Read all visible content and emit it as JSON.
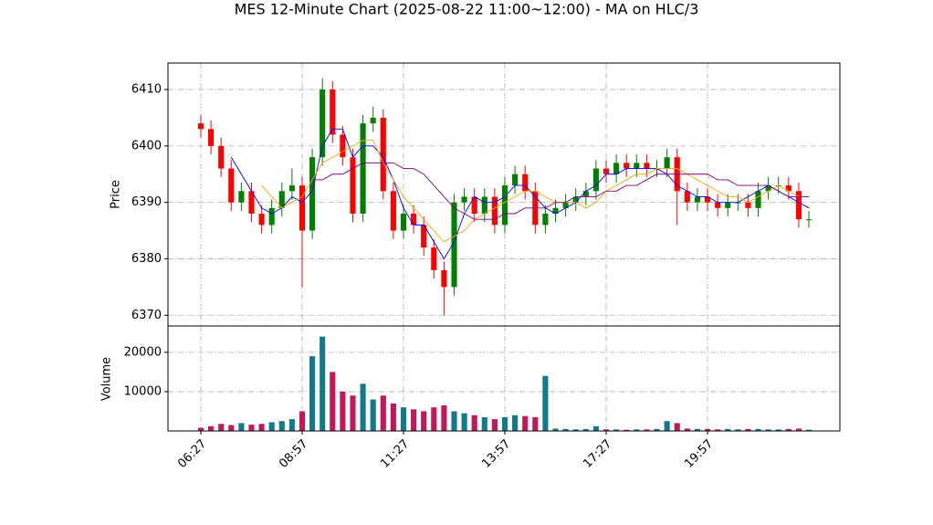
{
  "chart_data": {
    "type": "candlestick",
    "title": "MES 12-Minute Chart (2025-08-22 11:00~12:00) - MA on HLC/3",
    "ylabel": "Price",
    "volume_label": "Volume",
    "xlim": [
      -3.24,
      63.06
    ],
    "xticks": [
      {
        "value": 0,
        "label": "06:27"
      },
      {
        "value": 10,
        "label": "08:57"
      },
      {
        "value": 20,
        "label": "11:27"
      },
      {
        "value": 30,
        "label": "13:57"
      },
      {
        "value": 40,
        "label": "17:27"
      },
      {
        "value": 50,
        "label": "19:57"
      }
    ],
    "ylim": [
      6368.1,
      6414.7
    ],
    "yticks": [
      6370,
      6380,
      6390,
      6400,
      6410
    ],
    "volume_ylim": [
      0,
      26700
    ],
    "volume_yticks": [
      10000,
      20000
    ],
    "grid": true,
    "up_color": "green",
    "down_color": "red",
    "volume_up_color": "#117a8b",
    "volume_down_color": "#c2185b",
    "open": [
      6404,
      6403,
      6400,
      6396,
      6390,
      6392,
      6388,
      6386,
      6389,
      6392,
      6393,
      6385,
      6398,
      6410,
      6402,
      6398,
      6388,
      6404,
      6405,
      6392,
      6385,
      6388,
      6386,
      6382,
      6378,
      6375,
      6390,
      6391,
      6388,
      6391,
      6386,
      6393,
      6395,
      6392,
      6386,
      6388,
      6389,
      6390,
      6391,
      6392,
      6396,
      6395,
      6397,
      6396,
      6397,
      6396,
      6396,
      6398,
      6392,
      6390,
      6391,
      6390,
      6389,
      6390,
      6390,
      6389,
      6392,
      6393,
      6393,
      6392,
      6387
    ],
    "high": [
      6405.5,
      6404.5,
      6401.5,
      6397.5,
      6393.5,
      6393.5,
      6389.5,
      6390.5,
      6393.5,
      6396,
      6394.5,
      6399.5,
      6412,
      6411.5,
      6403.5,
      6399.5,
      6405.5,
      6407,
      6406.5,
      6393.5,
      6389.5,
      6389.5,
      6387.5,
      6383.5,
      6379.5,
      6391.5,
      6392.5,
      6392.5,
      6392.5,
      6392.5,
      6394.5,
      6396.5,
      6396.5,
      6393.5,
      6389.5,
      6390.5,
      6391.5,
      6392.5,
      6393.5,
      6397.5,
      6397.5,
      6398.5,
      6398.5,
      6398.5,
      6398.5,
      6397.5,
      6399.5,
      6399.5,
      6393.5,
      6392.5,
      6392.5,
      6391.5,
      6391.5,
      6391.5,
      6391.5,
      6393.5,
      6394.5,
      6394.5,
      6394.5,
      6393.5,
      6388.5
    ],
    "low": [
      6401.5,
      6398.5,
      6394.5,
      6388.5,
      6388.5,
      6386.5,
      6384.5,
      6384.5,
      6387.5,
      6390.5,
      6375,
      6383.5,
      6396.5,
      6400.5,
      6396.5,
      6386.5,
      6386.5,
      6402.5,
      6390.5,
      6383.5,
      6383.5,
      6384.5,
      6380.5,
      6376.5,
      6370,
      6373.5,
      6388.5,
      6386.5,
      6386.5,
      6384.5,
      6384.5,
      6391.5,
      6390.5,
      6384.5,
      6384.5,
      6386.5,
      6387.5,
      6388.5,
      6389.5,
      6390.5,
      6393.5,
      6393.5,
      6394.5,
      6394.5,
      6394.5,
      6394.5,
      6394.5,
      6386,
      6388.5,
      6388.5,
      6388.5,
      6387.5,
      6387.5,
      6388.5,
      6387.5,
      6387.5,
      6390.5,
      6391.5,
      6390.5,
      6385.5,
      6385.5
    ],
    "close": [
      6403,
      6400,
      6396,
      6390,
      6392,
      6388,
      6386,
      6389,
      6392,
      6393,
      6385,
      6398,
      6410,
      6402,
      6398,
      6388,
      6404,
      6405,
      6392,
      6385,
      6388,
      6386,
      6382,
      6378,
      6375,
      6390,
      6391,
      6388,
      6391,
      6386,
      6393,
      6395,
      6392,
      6386,
      6388,
      6389,
      6390,
      6391,
      6392,
      6396,
      6395,
      6397,
      6396,
      6397,
      6396,
      6396,
      6398,
      6392,
      6390,
      6391,
      6390,
      6389,
      6390,
      6390,
      6389,
      6392,
      6393,
      6393,
      6392,
      6387,
      6387
    ],
    "volume": [
      800,
      1200,
      1800,
      1500,
      2000,
      1600,
      1800,
      2200,
      2500,
      3000,
      5000,
      19000,
      24000,
      15000,
      10000,
      9000,
      12000,
      8000,
      9000,
      7000,
      6000,
      5500,
      5000,
      6000,
      6500,
      5000,
      4500,
      4000,
      3500,
      3000,
      3500,
      4000,
      3800,
      3500,
      14000,
      600,
      500,
      400,
      500,
      1200,
      400,
      400,
      300,
      400,
      400,
      500,
      2500,
      2000,
      600,
      500,
      500,
      400,
      500,
      400,
      500,
      500,
      400,
      400,
      500,
      600,
      300
    ],
    "series": [
      {
        "color": "blue",
        "values": [
          null,
          null,
          null,
          6398,
          6395,
          6392,
          6389,
          6388,
          6389,
          6391,
          6390,
          6392,
          6400,
          6403,
          6403,
          6398,
          6400,
          6400,
          6398,
          6394,
          6389,
          6386,
          6386,
          6383,
          6380,
          6383,
          6388,
          6391,
          6390,
          6390,
          6391,
          6393,
          6393,
          6391,
          6389,
          6388,
          6389,
          6390,
          6392,
          6393,
          6395,
          6395,
          6396,
          6396,
          6396,
          6396,
          6395,
          6393,
          6392,
          6391,
          6391,
          6390,
          6390,
          6390,
          6391,
          6392,
          6393,
          6392,
          6391,
          6390,
          6389
        ]
      },
      {
        "color": "orange",
        "values": [
          null,
          null,
          null,
          null,
          null,
          null,
          6393,
          6391,
          6389,
          6390,
          6391,
          6394,
          6397,
          6398,
          6399,
          6400,
          6401,
          6401,
          6397,
          6394,
          6391,
          6389,
          6387,
          6385,
          6383,
          6384,
          6385,
          6387,
          6388,
          6389,
          6390,
          6391,
          6392,
          6392,
          6391,
          6390,
          6390,
          6390,
          6389,
          6390,
          6392,
          6393,
          6394,
          6395,
          6395,
          6396,
          6396,
          6396,
          6395,
          6394,
          6393,
          6392,
          6391,
          6391,
          6390,
          6391,
          6392,
          6393,
          6392,
          6391,
          6391
        ]
      },
      {
        "color": "purple",
        "values": [
          null,
          null,
          null,
          null,
          null,
          null,
          null,
          null,
          null,
          null,
          null,
          6394,
          6394,
          6395,
          6395,
          6396,
          6397,
          6397,
          6397,
          6397,
          6396,
          6396,
          6395,
          6393,
          6391,
          6389,
          6388,
          6387,
          6387,
          6387,
          6388,
          6388,
          6389,
          6389,
          6389,
          6390,
          6390,
          6391,
          6391,
          6391,
          6392,
          6392,
          6393,
          6393,
          6394,
          6395,
          6395,
          6395,
          6395,
          6395,
          6395,
          6394,
          6394,
          6393,
          6393,
          6393,
          6393,
          6392,
          6391,
          6391,
          6391
        ]
      }
    ]
  }
}
